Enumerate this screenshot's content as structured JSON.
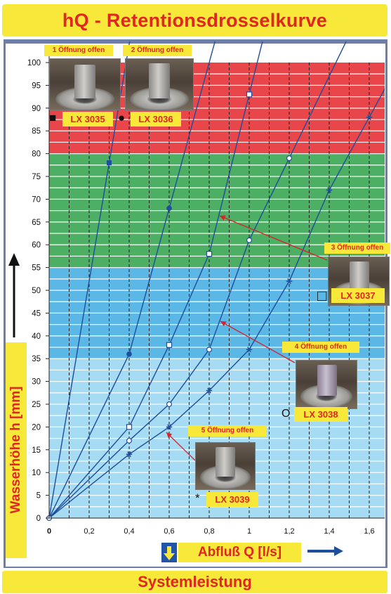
{
  "header": {
    "title": "hQ - Retentionsdrosselkurve"
  },
  "footer": {
    "label": "Systemleistung"
  },
  "chart_data": {
    "type": "line",
    "title": "hQ - Retentionsdrosselkurve",
    "xlabel": "Abfluß Q [l/s]",
    "ylabel": "Wasserhöhe h [mm]",
    "xlim": [
      0,
      1.7
    ],
    "ylim": [
      0,
      100
    ],
    "x_ticks": [
      "0",
      "0,2",
      "0,4",
      "0,6",
      "0,8",
      "1",
      "1,2",
      "1,4",
      "1,6"
    ],
    "y_ticks": [
      "0",
      "5",
      "10",
      "15",
      "20",
      "25",
      "30",
      "35",
      "40",
      "45",
      "50",
      "55",
      "60",
      "65",
      "70",
      "75",
      "80",
      "85",
      "90",
      "95",
      "100"
    ],
    "bands": [
      {
        "from": 80,
        "to": 100,
        "color": "#e8464a"
      },
      {
        "from": 55,
        "to": 80,
        "color": "#4daf63"
      },
      {
        "from": 35,
        "to": 55,
        "color": "#5bb7e6"
      },
      {
        "from": 0,
        "to": 35,
        "color": "#a6dbf4"
      }
    ],
    "series": [
      {
        "name": "LX 3035",
        "label": "1 Öffnung offen",
        "marker": "square-filled",
        "symbol": "■",
        "points": [
          [
            0,
            0
          ],
          [
            0.3,
            78
          ]
        ]
      },
      {
        "name": "LX 3036",
        "label": "2 Öffnung offen",
        "marker": "circle-filled",
        "symbol": "●",
        "points": [
          [
            0,
            0
          ],
          [
            0.4,
            36
          ],
          [
            0.6,
            68
          ]
        ]
      },
      {
        "name": "LX 3037",
        "label": "3 Öffnung offen",
        "marker": "square-open",
        "symbol": "□",
        "points": [
          [
            0,
            0
          ],
          [
            0.4,
            20
          ],
          [
            0.6,
            38
          ],
          [
            0.8,
            58
          ],
          [
            1.0,
            93
          ]
        ]
      },
      {
        "name": "LX 3038",
        "label": "4 Öffnung offen",
        "marker": "circle-open",
        "symbol": "O",
        "points": [
          [
            0,
            0
          ],
          [
            0.4,
            17
          ],
          [
            0.6,
            25
          ],
          [
            0.8,
            37
          ],
          [
            1.0,
            61
          ],
          [
            1.2,
            79
          ]
        ]
      },
      {
        "name": "LX 3039",
        "label": "5 Öffnung offen",
        "marker": "asterisk",
        "symbol": "*",
        "points": [
          [
            0,
            0
          ],
          [
            0.4,
            14
          ],
          [
            0.6,
            20
          ],
          [
            0.8,
            28
          ],
          [
            1.0,
            37
          ],
          [
            1.2,
            52
          ],
          [
            1.4,
            72
          ],
          [
            1.6,
            88
          ]
        ]
      }
    ],
    "colors": {
      "line": "#1f4e9a",
      "marker": "#1f4e9a",
      "label_box": "#f7e83a",
      "label_text": "#e0261f"
    }
  }
}
